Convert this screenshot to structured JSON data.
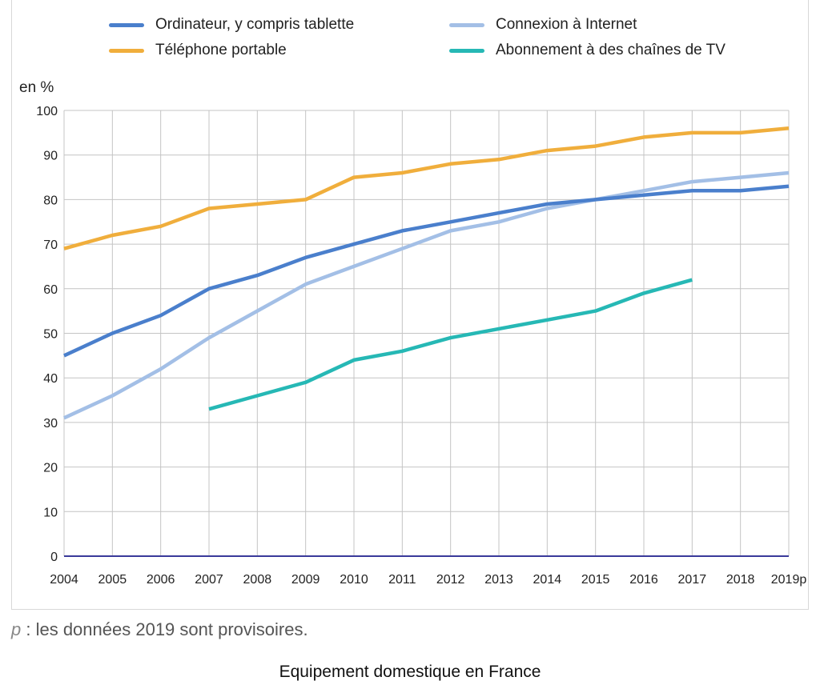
{
  "chart_data": {
    "type": "line",
    "ylabel": "en %",
    "ylim": [
      0,
      100
    ],
    "yticks": [
      0,
      10,
      20,
      30,
      40,
      50,
      60,
      70,
      80,
      90,
      100
    ],
    "categories": [
      "2004",
      "2005",
      "2006",
      "2007",
      "2008",
      "2009",
      "2010",
      "2011",
      "2012",
      "2013",
      "2014",
      "2015",
      "2016",
      "2017",
      "2018",
      "2019p"
    ],
    "grid": true,
    "legend_position": "top",
    "series": [
      {
        "name": "Ordinateur, y compris tablette",
        "color": "#4a7fcc",
        "values": [
          45,
          50,
          54,
          60,
          63,
          67,
          70,
          73,
          75,
          77,
          79,
          80,
          81,
          82,
          82,
          83
        ]
      },
      {
        "name": "Connexion à Internet",
        "color": "#a3bfe6",
        "values": [
          31,
          36,
          42,
          49,
          55,
          61,
          65,
          69,
          73,
          75,
          78,
          80,
          82,
          84,
          85,
          86
        ]
      },
      {
        "name": "Téléphone portable",
        "color": "#f0ae3c",
        "values": [
          69,
          72,
          74,
          78,
          79,
          80,
          85,
          86,
          88,
          89,
          91,
          92,
          94,
          95,
          95,
          96
        ]
      },
      {
        "name": "Abonnement à des chaînes de TV",
        "color": "#26b8b5",
        "values": [
          null,
          null,
          null,
          33,
          36,
          39,
          44,
          46,
          49,
          51,
          53,
          55,
          59,
          62,
          null,
          null
        ]
      }
    ]
  },
  "note": {
    "p_symbol": "p",
    "text": " : les données 2019 sont provisoires."
  },
  "caption": "Equipement domestique en France"
}
